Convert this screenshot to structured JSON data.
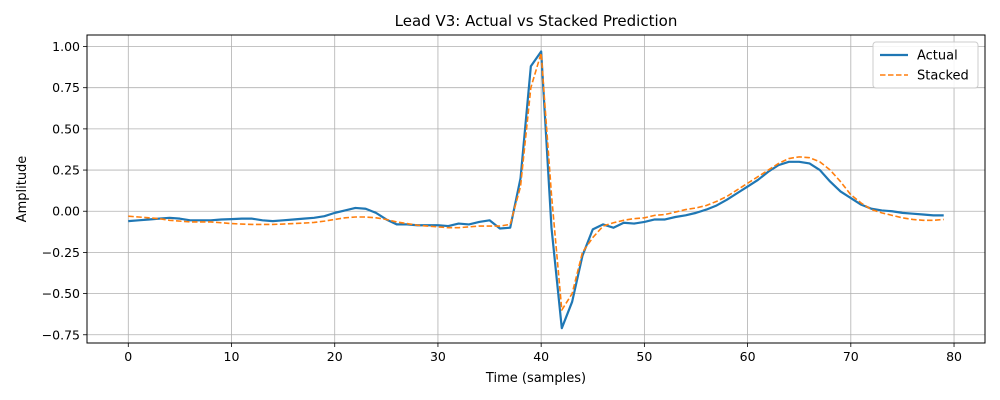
{
  "chart_data": {
    "type": "line",
    "title": "Lead V3: Actual vs Stacked Prediction",
    "xlabel": "Time (samples)",
    "ylabel": "Amplitude",
    "xlim": [
      -4,
      83
    ],
    "ylim": [
      -0.8,
      1.07
    ],
    "xticks": [
      0,
      10,
      20,
      30,
      40,
      50,
      60,
      70,
      80
    ],
    "yticks": [
      -0.75,
      -0.5,
      -0.25,
      0.0,
      0.25,
      0.5,
      0.75,
      1.0
    ],
    "ytick_labels": [
      "−0.75",
      "−0.50",
      "−0.25",
      "0.00",
      "0.25",
      "0.50",
      "0.75",
      "1.00"
    ],
    "grid": true,
    "legend_position": "top-right",
    "series": [
      {
        "name": "Actual",
        "color": "#1f77b4",
        "style": "solid",
        "x": [
          0,
          1,
          2,
          3,
          4,
          5,
          6,
          7,
          8,
          9,
          10,
          11,
          12,
          13,
          14,
          15,
          16,
          17,
          18,
          19,
          20,
          21,
          22,
          23,
          24,
          25,
          26,
          27,
          28,
          29,
          30,
          31,
          32,
          33,
          34,
          35,
          36,
          37,
          38,
          39,
          40,
          41,
          42,
          43,
          44,
          45,
          46,
          47,
          48,
          49,
          50,
          51,
          52,
          53,
          54,
          55,
          56,
          57,
          58,
          59,
          60,
          61,
          62,
          63,
          64,
          65,
          66,
          67,
          68,
          69,
          70,
          71,
          72,
          73,
          74,
          75,
          76,
          77,
          78,
          79
        ],
        "values": [
          -0.06,
          -0.055,
          -0.05,
          -0.045,
          -0.04,
          -0.045,
          -0.055,
          -0.055,
          -0.055,
          -0.05,
          -0.048,
          -0.045,
          -0.045,
          -0.055,
          -0.06,
          -0.055,
          -0.05,
          -0.045,
          -0.04,
          -0.03,
          -0.01,
          0.005,
          0.02,
          0.015,
          -0.01,
          -0.05,
          -0.08,
          -0.08,
          -0.085,
          -0.085,
          -0.085,
          -0.09,
          -0.075,
          -0.08,
          -0.065,
          -0.055,
          -0.105,
          -0.1,
          0.2,
          0.88,
          0.97,
          -0.1,
          -0.71,
          -0.55,
          -0.27,
          -0.11,
          -0.08,
          -0.1,
          -0.07,
          -0.075,
          -0.065,
          -0.05,
          -0.05,
          -0.035,
          -0.025,
          -0.01,
          0.01,
          0.035,
          0.07,
          0.11,
          0.15,
          0.19,
          0.24,
          0.28,
          0.3,
          0.3,
          0.29,
          0.25,
          0.18,
          0.12,
          0.08,
          0.04,
          0.015,
          0.005,
          0.0,
          -0.01,
          -0.015,
          -0.02,
          -0.025,
          -0.025
        ]
      },
      {
        "name": "Stacked",
        "color": "#ff7f0e",
        "style": "dashed",
        "x": [
          0,
          1,
          2,
          3,
          4,
          5,
          6,
          7,
          8,
          9,
          10,
          11,
          12,
          13,
          14,
          15,
          16,
          17,
          18,
          19,
          20,
          21,
          22,
          23,
          24,
          25,
          26,
          27,
          28,
          29,
          30,
          31,
          32,
          33,
          34,
          35,
          36,
          37,
          38,
          39,
          40,
          41,
          42,
          43,
          44,
          45,
          46,
          47,
          48,
          49,
          50,
          51,
          52,
          53,
          54,
          55,
          56,
          57,
          58,
          59,
          60,
          61,
          62,
          63,
          64,
          65,
          66,
          67,
          68,
          69,
          70,
          71,
          72,
          73,
          74,
          75,
          76,
          77,
          78,
          79
        ],
        "values": [
          -0.03,
          -0.035,
          -0.04,
          -0.045,
          -0.055,
          -0.06,
          -0.065,
          -0.065,
          -0.065,
          -0.07,
          -0.075,
          -0.078,
          -0.08,
          -0.08,
          -0.08,
          -0.078,
          -0.075,
          -0.072,
          -0.068,
          -0.06,
          -0.05,
          -0.04,
          -0.035,
          -0.035,
          -0.04,
          -0.05,
          -0.065,
          -0.075,
          -0.085,
          -0.09,
          -0.095,
          -0.1,
          -0.1,
          -0.095,
          -0.09,
          -0.09,
          -0.09,
          -0.08,
          0.15,
          0.75,
          0.96,
          0.1,
          -0.6,
          -0.5,
          -0.25,
          -0.16,
          -0.09,
          -0.07,
          -0.055,
          -0.045,
          -0.04,
          -0.025,
          -0.02,
          -0.005,
          0.01,
          0.02,
          0.035,
          0.06,
          0.09,
          0.13,
          0.17,
          0.21,
          0.25,
          0.29,
          0.32,
          0.33,
          0.325,
          0.3,
          0.25,
          0.18,
          0.1,
          0.05,
          0.01,
          -0.01,
          -0.025,
          -0.04,
          -0.05,
          -0.055,
          -0.055,
          -0.05
        ]
      }
    ]
  }
}
